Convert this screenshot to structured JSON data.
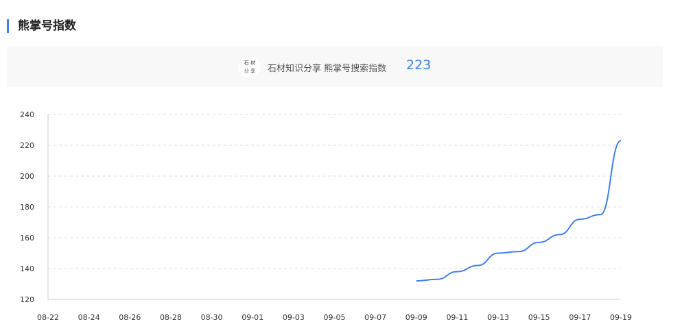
{
  "header": {
    "title": "熊掌号指数"
  },
  "banner": {
    "logo_text": "石材 分享",
    "account": "石材知识分享",
    "metric": "熊掌号搜索指数",
    "value": "223"
  },
  "colors": {
    "accent": "#3a7ff6",
    "grid": "#dddddd"
  },
  "chart_data": {
    "type": "line",
    "x_ticks": [
      "08-22",
      "08-24",
      "08-26",
      "08-28",
      "08-30",
      "09-01",
      "09-03",
      "09-05",
      "09-07",
      "09-09",
      "09-11",
      "09-13",
      "09-15",
      "09-17",
      "09-19"
    ],
    "y_ticks": [
      120,
      140,
      160,
      180,
      200,
      220,
      240
    ],
    "ylim": [
      120,
      240
    ],
    "grid": "horizontal dashed",
    "smooth": true,
    "x": [
      "09-09",
      "09-10",
      "09-11",
      "09-12",
      "09-13",
      "09-14",
      "09-15",
      "09-16",
      "09-17",
      "09-18",
      "09-19"
    ],
    "values": [
      132,
      133,
      138,
      142,
      150,
      151,
      157,
      162,
      172,
      175,
      223
    ]
  }
}
